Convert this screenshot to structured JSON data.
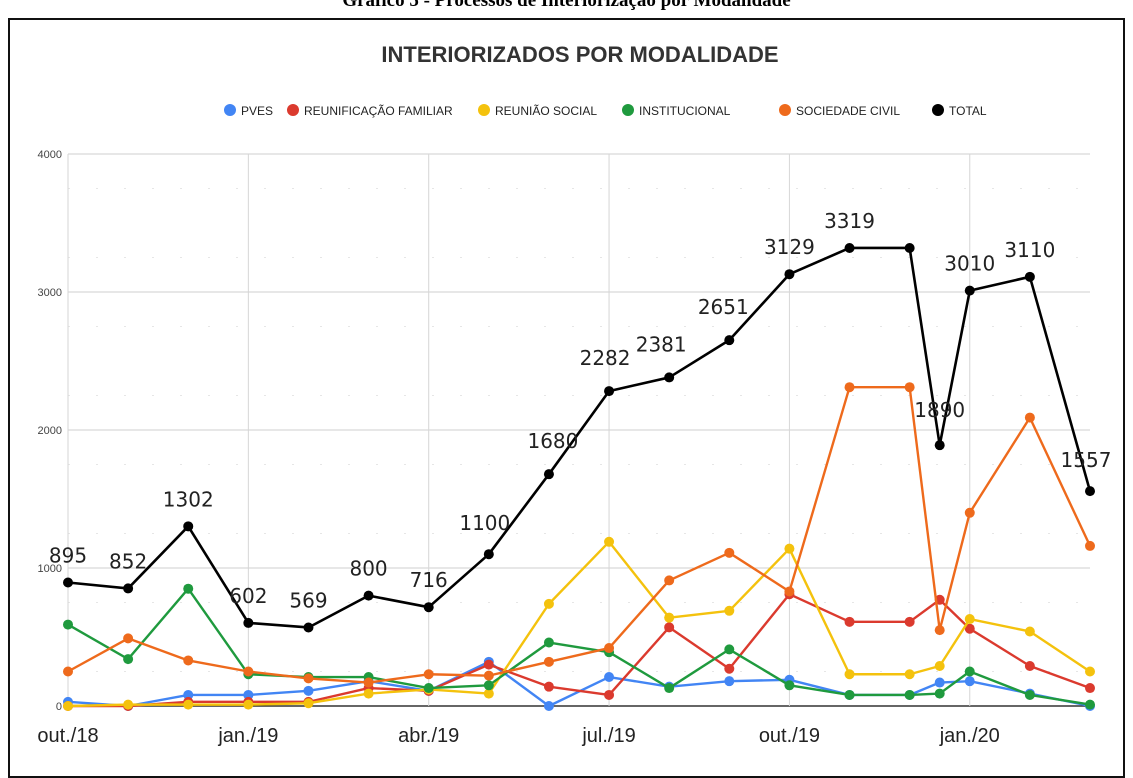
{
  "caption": "Gráfico 5 - Processos de Interiorização por Modalidade",
  "chart_data": {
    "type": "line",
    "title": "INTERIORIZADOS POR MODALIDADE",
    "xlabel": "",
    "ylabel": "",
    "ylim": [
      0,
      4000
    ],
    "yticks": [
      "0",
      "1000",
      "2000",
      "3000",
      "4000"
    ],
    "x_tick_labels": [
      {
        "index": 0,
        "label": "out./18"
      },
      {
        "index": 3,
        "label": "jan./19"
      },
      {
        "index": 6,
        "label": "abr./19"
      },
      {
        "index": 9,
        "label": "jul./19"
      },
      {
        "index": 12,
        "label": "out./19"
      },
      {
        "index": 15,
        "label": "jan./20"
      }
    ],
    "x": [
      0,
      1,
      2,
      3,
      4,
      5,
      6,
      7,
      8,
      9,
      10,
      11,
      12,
      13,
      14,
      14.5,
      15,
      16,
      17
    ],
    "legend_position": "top",
    "grid": true,
    "series": [
      {
        "name": "PVES",
        "color": "#4285f4",
        "values": [
          30,
          0,
          80,
          80,
          110,
          180,
          110,
          320,
          0,
          210,
          140,
          180,
          190,
          80,
          80,
          170,
          180,
          90,
          0
        ]
      },
      {
        "name": "REUNIFICAÇÃO FAMILIAR",
        "color": "#db3a2e",
        "values": [
          0,
          0,
          30,
          30,
          30,
          130,
          110,
          300,
          140,
          80,
          570,
          270,
          810,
          610,
          610,
          770,
          560,
          290,
          130
        ]
      },
      {
        "name": "REUNIÃO SOCIAL",
        "color": "#f4c20d",
        "values": [
          0,
          10,
          10,
          10,
          20,
          90,
          120,
          90,
          740,
          1190,
          640,
          690,
          1140,
          230,
          230,
          290,
          630,
          540,
          250
        ]
      },
      {
        "name": "INSTITUCIONAL",
        "color": "#1f9a3e",
        "values": [
          590,
          340,
          850,
          230,
          210,
          210,
          130,
          150,
          460,
          390,
          130,
          410,
          150,
          80,
          80,
          90,
          250,
          80,
          10
        ]
      },
      {
        "name": "SOCIEDADE CIVIL",
        "color": "#ee6a1c",
        "values": [
          250,
          490,
          330,
          250,
          200,
          170,
          230,
          220,
          320,
          420,
          910,
          1110,
          830,
          2310,
          2310,
          550,
          1400,
          2090,
          1160
        ]
      },
      {
        "name": "TOTAL",
        "color": "#000000",
        "values": [
          895,
          852,
          1302,
          602,
          569,
          800,
          716,
          1100,
          1680,
          2282,
          2381,
          2651,
          3129,
          3319,
          3319,
          1890,
          3010,
          3110,
          1557
        ]
      }
    ],
    "data_labels": [
      {
        "series": "TOTAL",
        "index": 0,
        "label": "895"
      },
      {
        "series": "TOTAL",
        "index": 1,
        "label": "852"
      },
      {
        "series": "TOTAL",
        "index": 2,
        "label": "1302"
      },
      {
        "series": "TOTAL",
        "index": 3,
        "label": "602"
      },
      {
        "series": "TOTAL",
        "index": 4,
        "label": "569"
      },
      {
        "series": "TOTAL",
        "index": 5,
        "label": "800"
      },
      {
        "series": "TOTAL",
        "index": 6,
        "label": "716"
      },
      {
        "series": "TOTAL",
        "index": 7,
        "label": "1100"
      },
      {
        "series": "TOTAL",
        "index": 8,
        "label": "1680"
      },
      {
        "series": "TOTAL",
        "index": 9,
        "label": "2282"
      },
      {
        "series": "TOTAL",
        "index": 10,
        "label": "2381"
      },
      {
        "series": "TOTAL",
        "index": 11,
        "label": "2651"
      },
      {
        "series": "TOTAL",
        "index": 12,
        "label": "3129"
      },
      {
        "series": "TOTAL",
        "index": 13,
        "label": "3319"
      },
      {
        "series": "TOTAL",
        "index": 15,
        "label": "1890"
      },
      {
        "series": "TOTAL",
        "index": 16,
        "label": "3010"
      },
      {
        "series": "TOTAL",
        "index": 17,
        "label": "3110"
      },
      {
        "series": "TOTAL",
        "index": 18,
        "label": "1557"
      }
    ]
  }
}
